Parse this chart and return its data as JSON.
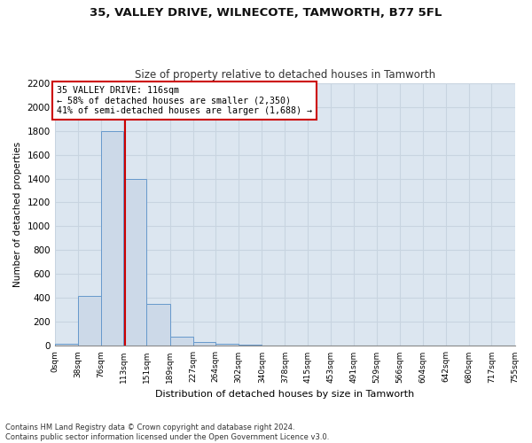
{
  "title_line1": "35, VALLEY DRIVE, WILNECOTE, TAMWORTH, B77 5FL",
  "title_line2": "Size of property relative to detached houses in Tamworth",
  "xlabel": "Distribution of detached houses by size in Tamworth",
  "ylabel": "Number of detached properties",
  "footnote_line1": "Contains HM Land Registry data © Crown copyright and database right 2024.",
  "footnote_line2": "Contains public sector information licensed under the Open Government Licence v3.0.",
  "annotation_line1": "35 VALLEY DRIVE: 116sqm",
  "annotation_line2": "← 58% of detached houses are smaller (2,350)",
  "annotation_line3": "41% of semi-detached houses are larger (1,688) →",
  "property_size_sqm": 116,
  "bin_edges": [
    0,
    38,
    76,
    113,
    151,
    189,
    227,
    264,
    302,
    340,
    378,
    415,
    453,
    491,
    529,
    566,
    604,
    642,
    680,
    717,
    755
  ],
  "bin_counts": [
    15,
    420,
    1800,
    1400,
    350,
    80,
    35,
    20,
    10,
    0,
    0,
    0,
    0,
    0,
    0,
    0,
    0,
    0,
    0,
    0
  ],
  "bar_color": "#ccd9e8",
  "bar_edge_color": "#6699cc",
  "vline_color": "#cc0000",
  "vline_x": 116,
  "annotation_box_edge_color": "#cc0000",
  "grid_color": "#c8d4e0",
  "background_color": "#dce6f0",
  "fig_background": "#ffffff",
  "ylim": [
    0,
    2200
  ],
  "yticks": [
    0,
    200,
    400,
    600,
    800,
    1000,
    1200,
    1400,
    1600,
    1800,
    2000,
    2200
  ]
}
